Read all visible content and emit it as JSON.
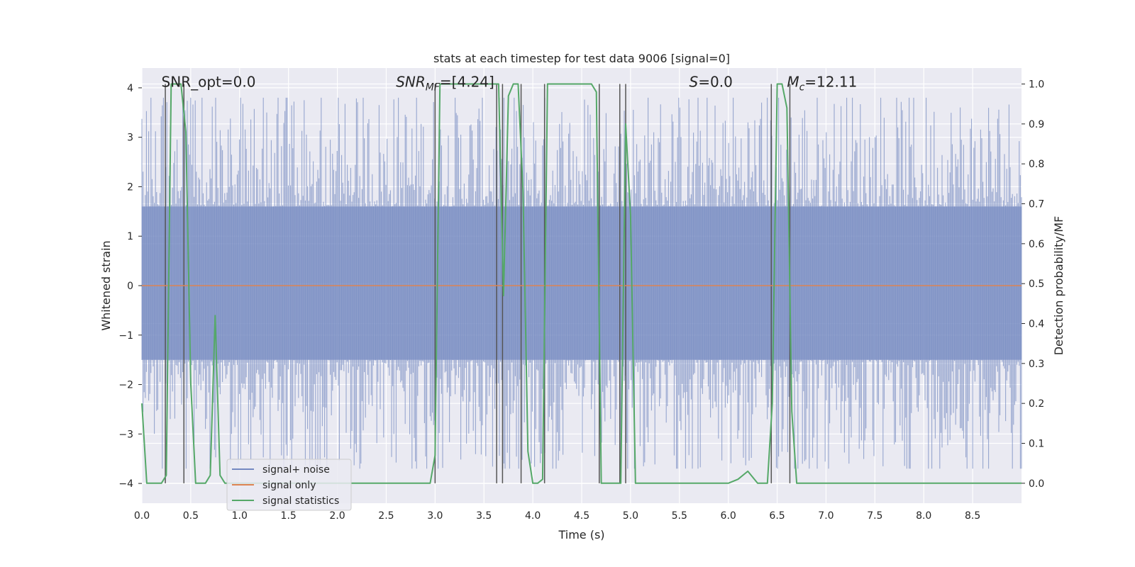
{
  "chart_data": {
    "type": "line",
    "title": "stats at each timestep for test data 9006 [signal=0]",
    "xlabel": "Time (s)",
    "ylabel": "Whitened strain",
    "y2label": "Detection probability/MF",
    "xlim": [
      0.0,
      9.0
    ],
    "ylim": [
      -4.4,
      4.4
    ],
    "y2lim": [
      -0.05,
      1.04
    ],
    "x_ticks": [
      "0.0",
      "0.5",
      "1.0",
      "1.5",
      "2.0",
      "2.5",
      "3.0",
      "3.5",
      "4.0",
      "4.5",
      "5.0",
      "5.5",
      "6.0",
      "6.5",
      "7.0",
      "7.5",
      "8.0",
      "8.5"
    ],
    "y_ticks": [
      "4",
      "3",
      "2",
      "1",
      "0",
      "−1",
      "−2",
      "−3",
      "−4"
    ],
    "y2_ticks": [
      "1.0",
      "0.9",
      "0.8",
      "0.7",
      "0.6",
      "0.5",
      "0.4",
      "0.3",
      "0.2",
      "0.1",
      "0.0"
    ],
    "grid": true,
    "legend_position": "bottom-left",
    "annotations": [
      {
        "label": "SNR_opt=0.0",
        "x": 0.2,
        "y": 4.02
      },
      {
        "label": "SNR",
        "sub": "MF",
        "rest": "=[4.24]",
        "x": 2.6,
        "y": 4.02
      },
      {
        "label": "S",
        "rest": "=0.0",
        "x": 5.6,
        "y": 4.02
      },
      {
        "label": "M",
        "sub": "c",
        "rest": "=12.11",
        "x": 6.6,
        "y": 4.02
      }
    ],
    "vlines": [
      0.24,
      0.43,
      3.0,
      3.63,
      3.69,
      3.88,
      4.12,
      4.68,
      4.89,
      4.95,
      6.44,
      6.63
    ],
    "series": [
      {
        "name": "signal+ noise",
        "color": "#7489c1",
        "kind": "noise",
        "envelope": {
          "core_low": -1.5,
          "core_high": 1.6,
          "peak_low": -3.7,
          "peak_high": 3.8
        }
      },
      {
        "name": "signal only",
        "color": "#dd8452",
        "x": [
          0.0,
          9.0
        ],
        "y": [
          0.0,
          0.0
        ]
      },
      {
        "name": "signal statistics",
        "color": "#55a868",
        "axis": "right",
        "x": [
          0.0,
          0.05,
          0.1,
          0.15,
          0.2,
          0.25,
          0.3,
          0.35,
          0.4,
          0.45,
          0.5,
          0.55,
          0.6,
          0.65,
          0.7,
          0.75,
          0.8,
          0.85,
          0.9,
          0.95,
          1.0,
          1.5,
          2.0,
          2.5,
          2.9,
          2.95,
          3.0,
          3.05,
          3.1,
          3.5,
          3.55,
          3.6,
          3.65,
          3.7,
          3.75,
          3.8,
          3.85,
          3.9,
          3.95,
          4.0,
          4.05,
          4.1,
          4.15,
          4.2,
          4.5,
          4.6,
          4.65,
          4.7,
          4.75,
          4.8,
          4.85,
          4.9,
          4.95,
          5.0,
          5.05,
          5.5,
          6.0,
          6.1,
          6.2,
          6.3,
          6.4,
          6.45,
          6.5,
          6.55,
          6.6,
          6.65,
          6.7,
          6.75,
          7.0,
          8.0,
          8.5,
          9.0
        ],
        "y": [
          0.2,
          0.0,
          0.0,
          0.0,
          0.0,
          0.02,
          1.0,
          1.0,
          1.0,
          0.88,
          0.25,
          0.0,
          0.0,
          0.0,
          0.02,
          0.42,
          0.02,
          0.0,
          0.0,
          0.0,
          0.0,
          0.0,
          0.0,
          0.0,
          0.0,
          0.0,
          0.07,
          1.0,
          1.0,
          1.0,
          1.0,
          1.0,
          1.0,
          0.47,
          0.97,
          1.0,
          1.0,
          0.73,
          0.08,
          0.0,
          0.0,
          0.01,
          1.0,
          1.0,
          1.0,
          1.0,
          0.98,
          0.0,
          0.0,
          0.0,
          0.0,
          0.0,
          0.9,
          0.67,
          0.0,
          0.0,
          0.0,
          0.01,
          0.03,
          0.0,
          0.0,
          0.2,
          1.0,
          1.0,
          0.94,
          0.18,
          0.0,
          0.0,
          0.0,
          0.0,
          0.0,
          0.0
        ]
      }
    ]
  }
}
